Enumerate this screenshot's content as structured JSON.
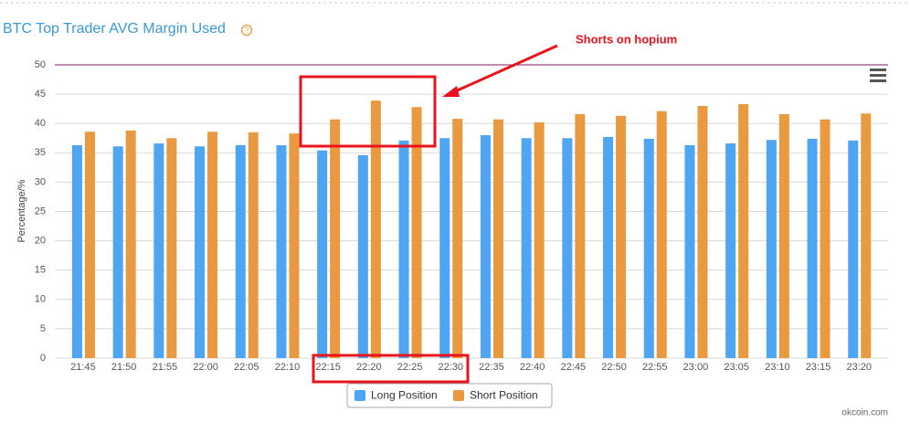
{
  "chart_data": {
    "type": "bar",
    "title": "BTC Top Trader AVG Margin Used",
    "y_label": "Percentage/%",
    "annotation": "Shorts on hopium",
    "source": "okcoin.com",
    "categories": [
      "21:45",
      "21:50",
      "21:55",
      "22:00",
      "22:05",
      "22:10",
      "22:15",
      "22:20",
      "22:25",
      "22:30",
      "22:35",
      "22:40",
      "22:45",
      "22:50",
      "22:55",
      "23:00",
      "23:05",
      "23:10",
      "23:15",
      "23:20"
    ],
    "series": [
      {
        "name": "Long Position",
        "color": "#4ea5f2",
        "values": [
          36.3,
          36.1,
          36.6,
          36.1,
          36.3,
          36.3,
          35.4,
          34.6,
          37.1,
          37.5,
          38.0,
          37.5,
          37.5,
          37.7,
          37.4,
          36.3,
          36.6,
          37.2,
          37.4,
          37.1
        ]
      },
      {
        "name": "Short Position",
        "color": "#e99a40",
        "values": [
          38.6,
          38.8,
          37.5,
          38.6,
          38.5,
          38.3,
          40.7,
          43.9,
          42.8,
          40.8,
          40.7,
          40.2,
          41.6,
          41.3,
          42.1,
          43.0,
          43.3,
          41.6,
          40.7,
          41.7
        ]
      }
    ],
    "ylim": [
      0,
      50
    ],
    "yticks": [
      0,
      5,
      10,
      15,
      20,
      25,
      30,
      35,
      40,
      45,
      50
    ],
    "grid": true
  }
}
